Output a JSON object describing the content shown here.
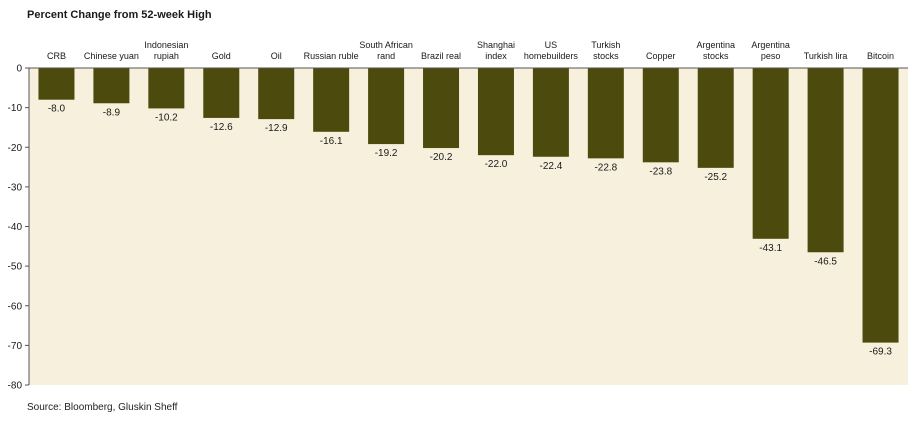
{
  "title": "Percent Change from 52-week High",
  "source": "Source: Bloomberg, Gluskin Sheff",
  "colors": {
    "bar": "#4d4a0e",
    "plot_bg": "#f7f0dd",
    "axis": "#555555"
  },
  "chart_data": {
    "type": "bar",
    "title": "Percent Change from 52-week High",
    "xlabel": "",
    "ylabel": "",
    "ylim": [
      -80,
      0
    ],
    "yticks": [
      0,
      -10,
      -20,
      -30,
      -40,
      -50,
      -60,
      -70,
      -80
    ],
    "grid": false,
    "categories": [
      [
        "CRB"
      ],
      [
        "Chinese yuan"
      ],
      [
        "Indonesian",
        "rupiah"
      ],
      [
        "Gold"
      ],
      [
        "Oil"
      ],
      [
        "Russian ruble"
      ],
      [
        "South African",
        "rand"
      ],
      [
        "Brazil real"
      ],
      [
        "Shanghai",
        "index"
      ],
      [
        "US",
        "homebuilders"
      ],
      [
        "Turkish",
        "stocks"
      ],
      [
        "Copper"
      ],
      [
        "Argentina",
        "stocks"
      ],
      [
        "Argentina",
        "peso"
      ],
      [
        "Turkish lira"
      ],
      [
        "Bitcoin"
      ]
    ],
    "values": [
      -8.0,
      -8.9,
      -10.2,
      -12.6,
      -12.9,
      -16.1,
      -19.2,
      -20.2,
      -22.0,
      -22.4,
      -22.8,
      -23.8,
      -25.2,
      -43.1,
      -46.5,
      -69.3
    ],
    "value_labels": [
      "-8.0",
      "-8.9",
      "-10.2",
      "-12.6",
      "-12.9",
      "-16.1",
      "-19.2",
      "-20.2",
      "-22.0",
      "-22.4",
      "-22.8",
      "-23.8",
      "-25.2",
      "-43.1",
      "-46.5",
      "-69.3"
    ]
  }
}
